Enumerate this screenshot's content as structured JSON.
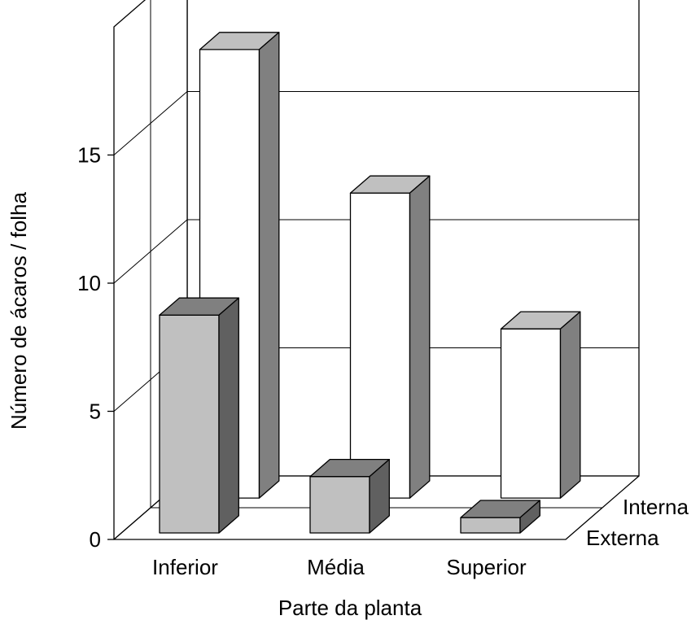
{
  "chart_data": {
    "type": "bar",
    "categories": [
      "Inferior",
      "Média",
      "Superior"
    ],
    "series": [
      {
        "name": "Interna",
        "values": [
          17.5,
          11.9,
          6.6
        ]
      },
      {
        "name": "Externa",
        "values": [
          8.5,
          2.2,
          0.6
        ]
      }
    ],
    "xlabel": "Parte da planta",
    "ylabel": "Número de ácaros / folha",
    "ylim": [
      0,
      20
    ],
    "yticks": [
      0,
      5,
      10,
      15
    ],
    "grid": true,
    "colors": {
      "interna_front": "#ffffff",
      "interna_top": "#c0c0c0",
      "interna_side": "#808080",
      "externa_front": "#c0c0c0",
      "externa_top": "#808080",
      "externa_side": "#606060"
    }
  }
}
